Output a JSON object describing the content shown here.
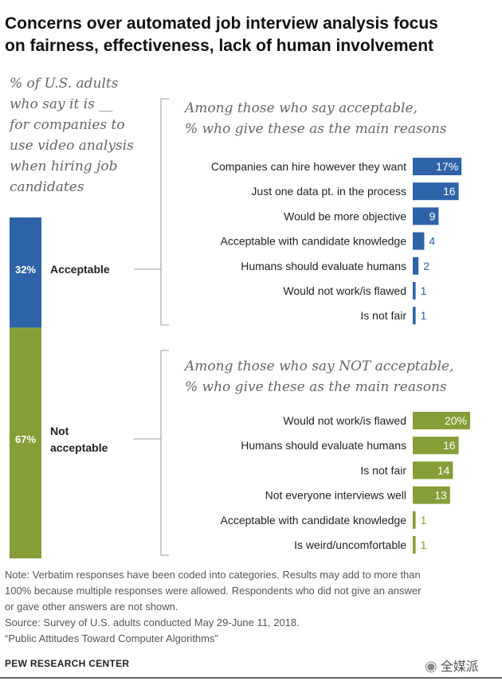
{
  "header": {
    "title_line1": "Concerns over automated job interview analysis focus",
    "title_line2": "on fairness, effectiveness, lack of human involvement"
  },
  "intro": {
    "lines": [
      "% of U.S. adults",
      "who say it is __",
      "for companies to",
      "use video analysis",
      "when hiring job",
      "candidates"
    ]
  },
  "colors": {
    "acceptable": "#2e63a8",
    "not_acceptable": "#869e38",
    "bracket": "#999999",
    "text": "#222222"
  },
  "chart_data": {
    "type": "bar",
    "title": "Concerns over automated job interview analysis focus on fairness, effectiveness, lack of human involvement",
    "stacked_bar": {
      "segments": [
        {
          "name": "Acceptable",
          "value": 32,
          "label": "32%"
        },
        {
          "name": "Not acceptable",
          "value": 67,
          "label": "67%"
        }
      ]
    },
    "panels": [
      {
        "group": "Acceptable",
        "heading": [
          "Among those who say acceptable,",
          "% who give these as the main reasons"
        ],
        "bars": [
          {
            "category": "Companies can hire however they want",
            "value": 17,
            "label": "17%"
          },
          {
            "category": "Just one data pt. in the process",
            "value": 16,
            "label": "16"
          },
          {
            "category": "Would be more objective",
            "value": 9,
            "label": "9"
          },
          {
            "category": "Acceptable with candidate knowledge",
            "value": 4,
            "label": "4"
          },
          {
            "category": "Humans should evaluate humans",
            "value": 2,
            "label": "2"
          },
          {
            "category": "Would not work/is flawed",
            "value": 1,
            "label": "1"
          },
          {
            "category": "Is not fair",
            "value": 1,
            "label": "1"
          }
        ]
      },
      {
        "group": "Not acceptable",
        "heading": [
          "Among those who say NOT acceptable,",
          "% who give these as the main reasons"
        ],
        "bars": [
          {
            "category": "Would not work/is flawed",
            "value": 20,
            "label": "20%"
          },
          {
            "category": "Humans should evaluate humans",
            "value": 16,
            "label": "16"
          },
          {
            "category": "Is not fair",
            "value": 14,
            "label": "14"
          },
          {
            "category": "Not everyone interviews well",
            "value": 13,
            "label": "13"
          },
          {
            "category": "Acceptable with candidate knowledge",
            "value": 1,
            "label": "1"
          },
          {
            "category": "Is weird/uncomfortable",
            "value": 1,
            "label": "1"
          }
        ]
      }
    ]
  },
  "notes": {
    "lines": [
      "Note: Verbatim responses have been coded into categories. Results may add to more than",
      "100% because multiple responses were allowed. Respondents who did not give an answer",
      "or gave other answers are not shown.",
      "Source: Survey of U.S. adults conducted May 29-June 11, 2018.",
      "“Public Attitudes Toward Computer Algorithms”"
    ]
  },
  "footer": {
    "brand": "PEW RESEARCH CENTER",
    "watermark": "全媒派",
    "watermark_icon": "wechat-icon"
  }
}
